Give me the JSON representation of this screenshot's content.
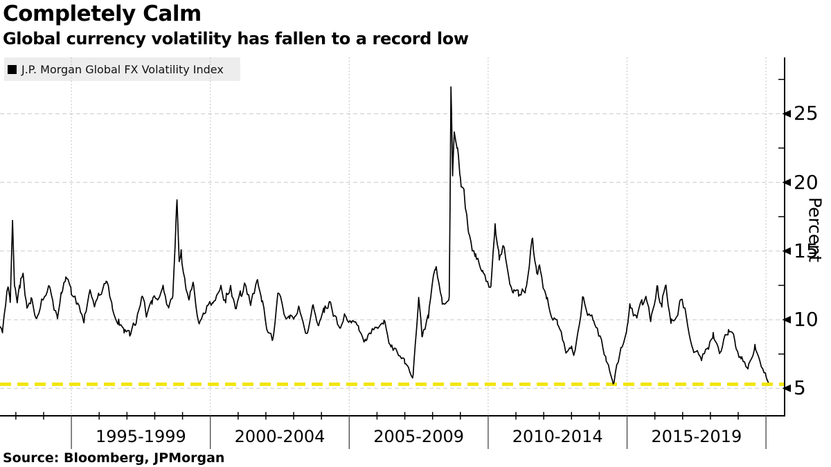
{
  "header": {
    "title": "Completely Calm",
    "subtitle": "Global currency volatility has fallen to a record low"
  },
  "legend": {
    "label": "J.P. Morgan Global FX Volatility Index",
    "swatch_color": "#000000",
    "background_color": "#ededed"
  },
  "footer": {
    "source": "Source: Bloomberg, JPMorgan"
  },
  "y_axis": {
    "label": "Percent",
    "major_ticks": [
      5,
      10,
      15,
      20,
      25
    ],
    "minor_ticks": [
      7.5,
      12.5,
      17.5,
      22.5,
      27.5
    ],
    "range": [
      3.0,
      29.1
    ]
  },
  "x_axis": {
    "period_labels": [
      "1995-1999",
      "2000-2004",
      "2005-2009",
      "2010-2014",
      "2015-2019"
    ],
    "divider_years": [
      1995,
      2000,
      2005,
      2010,
      2015,
      2020
    ],
    "minor_tick_step_years": 1,
    "range_years": [
      1992.43,
      2020.67
    ]
  },
  "reference_line": {
    "value": 5.3,
    "color": "#f2e50f",
    "style": "dashed"
  },
  "colors": {
    "series": "#000000",
    "h_grid": "#c9c9c9",
    "v_grid": "#b3b3b3",
    "axis": "#000000",
    "record_low": "#f2e50f"
  },
  "chart_data": {
    "type": "line",
    "title": "Completely Calm",
    "subtitle": "Global currency volatility has fallen to a record low",
    "xlabel": "",
    "ylabel": "Percent",
    "x_unit": "decimal year",
    "xlim": [
      1992.43,
      2020.67
    ],
    "ylim": [
      3.0,
      29.1
    ],
    "grid": true,
    "legend_position": "top-left",
    "reference_line_y": 5.3,
    "series": [
      {
        "name": "J.P. Morgan Global FX Volatility Index",
        "color": "#000000",
        "points": [
          [
            1992.43,
            9.5
          ],
          [
            1992.52,
            9.1
          ],
          [
            1992.62,
            10.8
          ],
          [
            1992.72,
            12.4
          ],
          [
            1992.8,
            11.2
          ],
          [
            1992.88,
            17.1
          ],
          [
            1992.95,
            12.4
          ],
          [
            1993.05,
            11.2
          ],
          [
            1993.15,
            12.2
          ],
          [
            1993.26,
            13.3
          ],
          [
            1993.4,
            10.9
          ],
          [
            1993.55,
            11.6
          ],
          [
            1993.75,
            10.2
          ],
          [
            1993.95,
            11.4
          ],
          [
            1994.2,
            12.4
          ],
          [
            1994.35,
            11.0
          ],
          [
            1994.5,
            10.0
          ],
          [
            1994.65,
            11.7
          ],
          [
            1994.8,
            13.1
          ],
          [
            1995.0,
            11.6
          ],
          [
            1995.2,
            11.0
          ],
          [
            1995.45,
            9.7
          ],
          [
            1995.67,
            12.2
          ],
          [
            1995.85,
            11.1
          ],
          [
            1996.0,
            11.6
          ],
          [
            1996.25,
            12.9
          ],
          [
            1996.45,
            11.4
          ],
          [
            1996.7,
            10.1
          ],
          [
            1996.9,
            9.0
          ],
          [
            1997.1,
            8.7
          ],
          [
            1997.3,
            9.6
          ],
          [
            1997.55,
            11.6
          ],
          [
            1997.7,
            10.3
          ],
          [
            1997.9,
            10.9
          ],
          [
            1998.1,
            11.3
          ],
          [
            1998.3,
            12.4
          ],
          [
            1998.5,
            10.9
          ],
          [
            1998.65,
            11.8
          ],
          [
            1998.8,
            18.8
          ],
          [
            1998.88,
            14.2
          ],
          [
            1998.95,
            15.3
          ],
          [
            1999.1,
            12.6
          ],
          [
            1999.25,
            11.6
          ],
          [
            1999.4,
            12.4
          ],
          [
            1999.6,
            9.7
          ],
          [
            1999.75,
            10.4
          ],
          [
            1999.9,
            10.9
          ],
          [
            2000.1,
            11.3
          ],
          [
            2000.36,
            12.2
          ],
          [
            2000.55,
            11.1
          ],
          [
            2000.73,
            12.5
          ],
          [
            2000.9,
            10.7
          ],
          [
            2001.1,
            11.7
          ],
          [
            2001.23,
            12.7
          ],
          [
            2001.45,
            11.0
          ],
          [
            2001.7,
            12.9
          ],
          [
            2001.85,
            11.2
          ],
          [
            2002.0,
            9.7
          ],
          [
            2002.25,
            8.6
          ],
          [
            2002.45,
            11.7
          ],
          [
            2002.65,
            10.5
          ],
          [
            2002.85,
            10.0
          ],
          [
            2003.0,
            10.1
          ],
          [
            2003.2,
            10.9
          ],
          [
            2003.5,
            9.1
          ],
          [
            2003.7,
            11.0
          ],
          [
            2003.9,
            9.6
          ],
          [
            2004.1,
            10.4
          ],
          [
            2004.3,
            11.2
          ],
          [
            2004.5,
            10.2
          ],
          [
            2004.65,
            9.5
          ],
          [
            2004.85,
            10.3
          ],
          [
            2005.1,
            10.0
          ],
          [
            2005.35,
            9.2
          ],
          [
            2005.6,
            8.5
          ],
          [
            2005.75,
            9.0
          ],
          [
            2006.0,
            9.4
          ],
          [
            2006.25,
            10.0
          ],
          [
            2006.5,
            8.0
          ],
          [
            2006.75,
            7.5
          ],
          [
            2007.0,
            6.8
          ],
          [
            2007.3,
            6.0
          ],
          [
            2007.5,
            11.6
          ],
          [
            2007.62,
            8.7
          ],
          [
            2007.85,
            10.0
          ],
          [
            2008.1,
            13.4
          ],
          [
            2008.35,
            11.1
          ],
          [
            2008.6,
            11.8
          ],
          [
            2008.66,
            27.0
          ],
          [
            2008.72,
            20.5
          ],
          [
            2008.78,
            23.6
          ],
          [
            2008.9,
            22.4
          ],
          [
            2009.0,
            20.4
          ],
          [
            2009.15,
            18.9
          ],
          [
            2009.3,
            16.5
          ],
          [
            2009.55,
            14.8
          ],
          [
            2009.8,
            13.5
          ],
          [
            2010.1,
            12.6
          ],
          [
            2010.25,
            16.9
          ],
          [
            2010.4,
            14.2
          ],
          [
            2010.55,
            15.2
          ],
          [
            2010.75,
            13.0
          ],
          [
            2010.9,
            11.9
          ],
          [
            2011.1,
            11.5
          ],
          [
            2011.35,
            12.3
          ],
          [
            2011.6,
            16.0
          ],
          [
            2011.75,
            13.5
          ],
          [
            2011.85,
            14.0
          ],
          [
            2012.1,
            11.5
          ],
          [
            2012.5,
            9.5
          ],
          [
            2012.8,
            7.5
          ],
          [
            2013.0,
            8.1
          ],
          [
            2013.1,
            7.6
          ],
          [
            2013.4,
            11.7
          ],
          [
            2013.6,
            10.4
          ],
          [
            2013.8,
            9.9
          ],
          [
            2014.0,
            8.8
          ],
          [
            2014.25,
            7.0
          ],
          [
            2014.5,
            5.35
          ],
          [
            2014.65,
            6.8
          ],
          [
            2014.8,
            8.0
          ],
          [
            2015.0,
            9.5
          ],
          [
            2015.1,
            11.3
          ],
          [
            2015.35,
            10.0
          ],
          [
            2015.55,
            11.0
          ],
          [
            2015.7,
            11.2
          ],
          [
            2015.85,
            9.9
          ],
          [
            2016.1,
            12.5
          ],
          [
            2016.25,
            10.8
          ],
          [
            2016.4,
            12.5
          ],
          [
            2016.6,
            10.1
          ],
          [
            2016.8,
            10.2
          ],
          [
            2016.9,
            11.4
          ],
          [
            2017.1,
            10.6
          ],
          [
            2017.4,
            7.6
          ],
          [
            2017.65,
            7.3
          ],
          [
            2017.9,
            8.0
          ],
          [
            2018.1,
            9.1
          ],
          [
            2018.35,
            7.7
          ],
          [
            2018.65,
            9.3
          ],
          [
            2018.9,
            8.1
          ],
          [
            2019.1,
            7.1
          ],
          [
            2019.35,
            6.4
          ],
          [
            2019.6,
            8.2
          ],
          [
            2019.85,
            6.6
          ],
          [
            2020.0,
            5.9
          ],
          [
            2020.08,
            5.45
          ]
        ]
      }
    ]
  }
}
